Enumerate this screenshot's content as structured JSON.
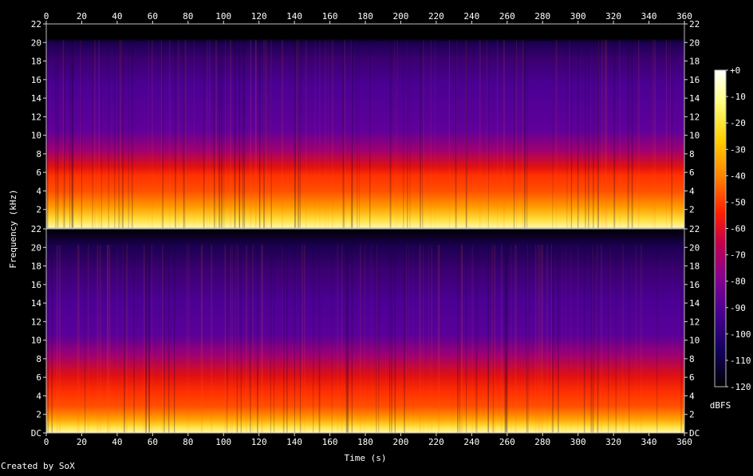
{
  "chart_data": {
    "type": "heatmap",
    "title": "",
    "xlabel": "Time (s)",
    "ylabel": "Frequency (kHz)",
    "x_ticks": [
      0,
      20,
      40,
      60,
      80,
      100,
      120,
      140,
      160,
      180,
      200,
      220,
      240,
      260,
      280,
      300,
      320,
      340,
      360
    ],
    "xlim": [
      0,
      360
    ],
    "channels": [
      {
        "y_ticks": [
          "2",
          "4",
          "6",
          "8",
          "10",
          "12",
          "14",
          "16",
          "18",
          "20",
          "22"
        ],
        "ylim": [
          0,
          22
        ]
      },
      {
        "y_ticks": [
          "DC",
          "2",
          "4",
          "6",
          "8",
          "10",
          "12",
          "14",
          "16",
          "18",
          "20",
          "22"
        ],
        "ylim": [
          0,
          22
        ]
      }
    ],
    "colorbar": {
      "label": "dBFS",
      "ticks": [
        "+0",
        "-10",
        "-20",
        "-30",
        "-40",
        "-50",
        "-60",
        "-70",
        "-80",
        "-90",
        "-100",
        "-110",
        "-120"
      ],
      "range": [
        -120,
        0
      ]
    },
    "colors": [
      "#000000",
      "#1a0050",
      "#4b0093",
      "#7b0090",
      "#b00060",
      "#e01010",
      "#ff5000",
      "#ffa000",
      "#ffe040",
      "#ffffff"
    ]
  },
  "footer": {
    "credit": "Created by SoX"
  }
}
